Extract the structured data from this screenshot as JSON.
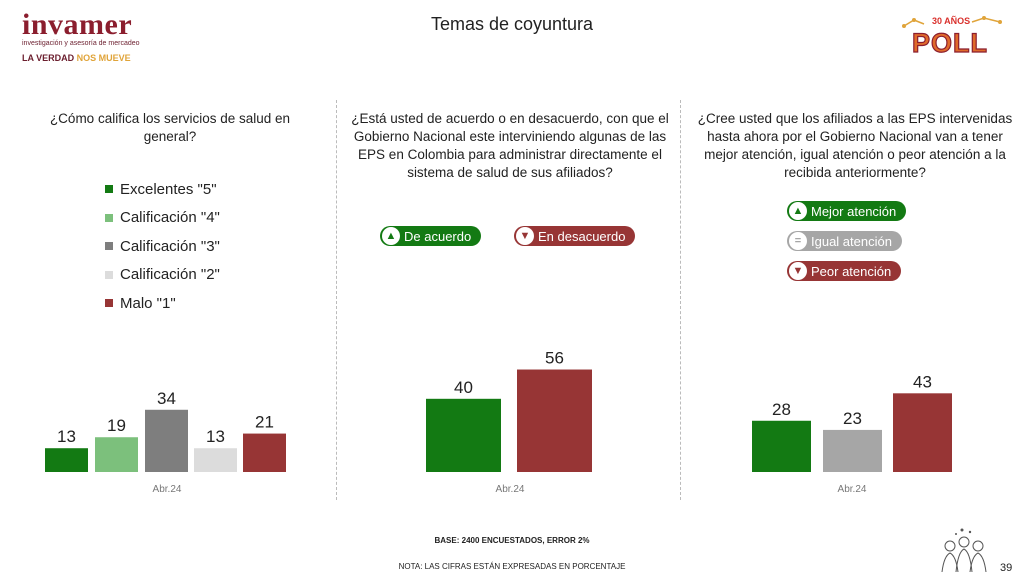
{
  "brand": {
    "logo_name": "invamer",
    "logo_subtitle": "investigación y asesoría de mercadeo",
    "motto_main": "LA VERDAD ",
    "motto_accent": "NOS MUEVE",
    "poll_years": "30 AÑOS",
    "poll_word": "POLL"
  },
  "page_title": "Temas de coyuntura",
  "panels": [
    {
      "question": "¿Cómo califica los servicios de salud en general?",
      "legend": [
        {
          "label": "Excelentes \"5\"",
          "color": "#137a13"
        },
        {
          "label": "Calificación \"4\"",
          "color": "#7cc07c"
        },
        {
          "label": "Calificación \"3\"",
          "color": "#7e7e7e"
        },
        {
          "label": "Calificación \"2\"",
          "color": "#dcdcdc"
        },
        {
          "label": "Malo \"1\"",
          "color": "#973535"
        }
      ]
    },
    {
      "question": "¿Está usted de acuerdo o en desacuerdo, con que el Gobierno Nacional este interviniendo algunas de las EPS en Colombia para administrar directamente el sistema de salud de sus afiliados?",
      "pills": [
        {
          "label": "De acuerdo",
          "color": "#137a13",
          "icon": "thumbs-up-icon",
          "glyph": "▲"
        },
        {
          "label": "En desacuerdo",
          "color": "#973535",
          "icon": "thumbs-down-icon",
          "glyph": "▼"
        }
      ]
    },
    {
      "question": "¿Cree usted que los afiliados a las EPS intervenidas hasta ahora por el Gobierno Nacional van a tener mejor atención, igual atención o peor atención a la recibida anteriormente?",
      "pills": [
        {
          "label": "Mejor atención",
          "color": "#137a13",
          "icon": "thumbs-up-icon",
          "glyph": "▲"
        },
        {
          "label": "Igual atención",
          "color": "#a6a6a6",
          "icon": "equals-icon",
          "glyph": "="
        },
        {
          "label": "Peor atención",
          "color": "#973535",
          "icon": "thumbs-down-icon",
          "glyph": "▼"
        }
      ]
    }
  ],
  "chart_data": [
    {
      "type": "bar",
      "categories": [
        "Excelentes \"5\"",
        "Calificación \"4\"",
        "Calificación \"3\"",
        "Calificación \"2\"",
        "Malo \"1\""
      ],
      "values": [
        13,
        19,
        34,
        13,
        21
      ],
      "colors": [
        "#137a13",
        "#7cc07c",
        "#7e7e7e",
        "#dcdcdc",
        "#973535"
      ],
      "xlabel": "Abr.24"
    },
    {
      "type": "bar",
      "categories": [
        "De acuerdo",
        "En desacuerdo"
      ],
      "values": [
        40,
        56
      ],
      "colors": [
        "#137a13",
        "#973535"
      ],
      "xlabel": "Abr.24"
    },
    {
      "type": "bar",
      "categories": [
        "Mejor atención",
        "Igual atención",
        "Peor atención"
      ],
      "values": [
        28,
        23,
        43
      ],
      "colors": [
        "#137a13",
        "#a6a6a6",
        "#973535"
      ],
      "xlabel": "Abr.24"
    }
  ],
  "footer": {
    "base": "BASE: 2400 ENCUESTADOS, ERROR 2%",
    "note": "NOTA: LAS CIFRAS ESTÁN EXPRESADAS EN PORCENTAJE",
    "page_number": "39"
  }
}
